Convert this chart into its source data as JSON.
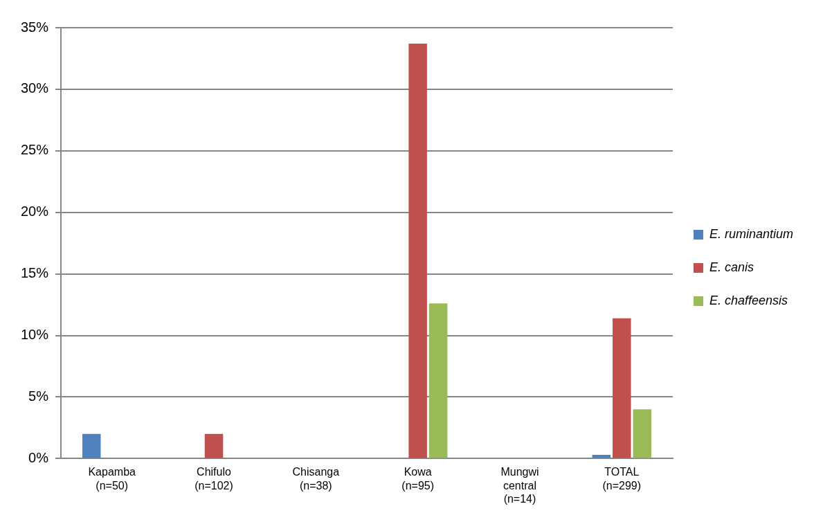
{
  "chart_data": {
    "type": "bar",
    "categories": [
      "Kapamba (n=50)",
      "Chifulo (n=102)",
      "Chisanga (n=38)",
      "Kowa (n=95)",
      "Mungwi central (n=14)",
      "TOTAL (n=299)"
    ],
    "series": [
      {
        "name": "E. ruminantium",
        "color": "#4f81bd",
        "values": [
          2,
          0,
          0,
          0,
          0,
          0.3
        ]
      },
      {
        "name": "E. canis",
        "color": "#c0504d",
        "values": [
          0,
          2,
          0,
          33.7,
          0,
          11.4
        ]
      },
      {
        "name": "E. chaffeensis",
        "color": "#9bbb59",
        "values": [
          0,
          0,
          0,
          12.6,
          0,
          4
        ]
      }
    ],
    "ylim": [
      0,
      35
    ],
    "yticks": [
      {
        "value": 0,
        "label": "0%"
      },
      {
        "value": 5,
        "label": "5%"
      },
      {
        "value": 10,
        "label": "10%"
      },
      {
        "value": 15,
        "label": "15%"
      },
      {
        "value": 20,
        "label": "20%"
      },
      {
        "value": 25,
        "label": "25%"
      },
      {
        "value": 30,
        "label": "30%"
      },
      {
        "value": 35,
        "label": "35%"
      }
    ],
    "grid": "y",
    "legend": "right"
  }
}
